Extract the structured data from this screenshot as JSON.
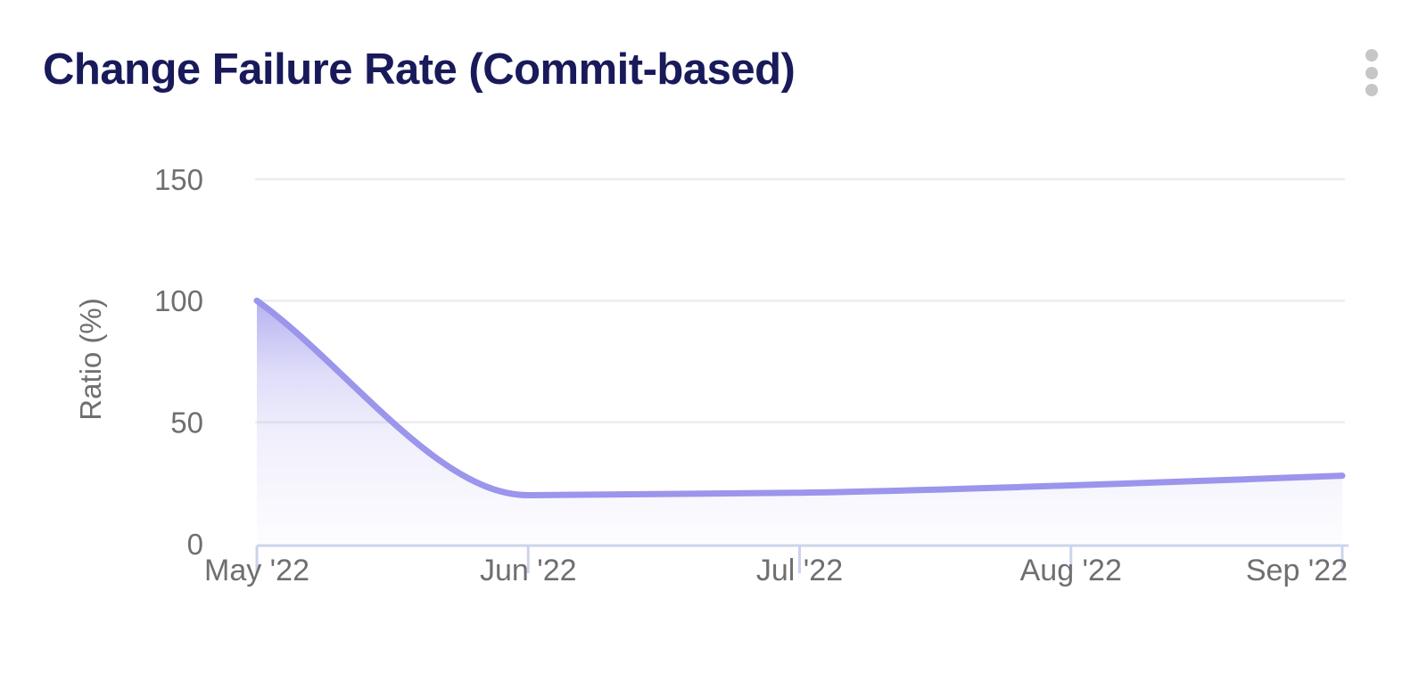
{
  "header": {
    "title": "Change Failure Rate (Commit-based)",
    "menu_icon": "kebab-menu-icon"
  },
  "chart_data": {
    "type": "area",
    "title": "Change Failure Rate (Commit-based)",
    "categories": [
      "May '22",
      "Jun '22",
      "Jul '22",
      "Aug '22",
      "Sep '22"
    ],
    "series": [
      {
        "name": "Change Failure Rate",
        "values": [
          100,
          20,
          21,
          24,
          28
        ]
      }
    ],
    "xlabel": "",
    "ylabel": "Ratio (%)",
    "yticks": [
      0,
      50,
      100,
      150
    ],
    "ylim": [
      0,
      150
    ],
    "grid": "horizontal",
    "legend": "none",
    "curve": "smooth-monotone"
  },
  "theme": {
    "background": "#ffffff",
    "title_color": "#181a5a",
    "line_color": "#9b95ec",
    "area_top_color": "#b3aff1",
    "gridline_color": "#ededed",
    "axis_color": "#ccd4ec",
    "axis_text_color": "#6f6f6f",
    "menu_dot_color": "#c6c6c6"
  }
}
